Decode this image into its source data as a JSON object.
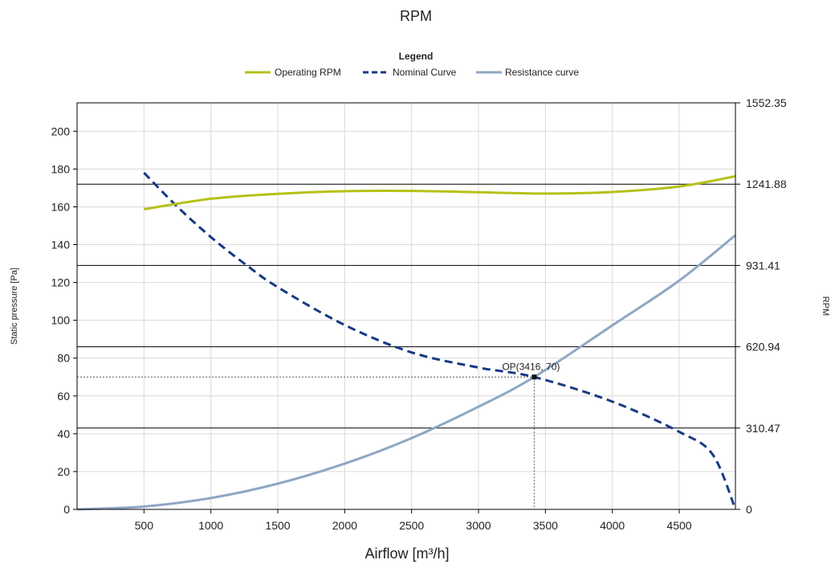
{
  "chart_data": {
    "type": "line",
    "title": "RPM",
    "legend": {
      "title": "Legend",
      "placement": "top-center"
    },
    "xlabel": "Airflow [m³/h]",
    "ylabel": "Static pressure [Pa]",
    "y2label": "RPM",
    "xlim": [
      0,
      4920
    ],
    "ylim": [
      0,
      215
    ],
    "y2lim": [
      0,
      1552.35
    ],
    "x_ticks": [
      500,
      1000,
      1500,
      2000,
      2500,
      3000,
      3500,
      4000,
      4500
    ],
    "y_ticks": [
      0,
      20,
      40,
      60,
      80,
      100,
      120,
      140,
      160,
      180,
      200
    ],
    "y2_ticks": [
      "0",
      "310.47",
      "620.94",
      "931.41",
      "1241.88",
      "1552.35"
    ],
    "grid": true,
    "series": [
      {
        "name": "Operating RPM",
        "color": "#b5c118",
        "axis": "y2",
        "style": "solid",
        "points": [
          [
            500,
            1146
          ],
          [
            1000,
            1186
          ],
          [
            1500,
            1205
          ],
          [
            2000,
            1215
          ],
          [
            2500,
            1216
          ],
          [
            3000,
            1211
          ],
          [
            3500,
            1206
          ],
          [
            4000,
            1212
          ],
          [
            4500,
            1233
          ],
          [
            4920,
            1272
          ]
        ]
      },
      {
        "name": "Nominal Curve",
        "color": "#173a84",
        "axis": "y",
        "style": "dashed",
        "points": [
          [
            500,
            178
          ],
          [
            750,
            160
          ],
          [
            1000,
            144
          ],
          [
            1250,
            130
          ],
          [
            1500,
            117.5
          ],
          [
            2000,
            97.5
          ],
          [
            2500,
            83
          ],
          [
            3000,
            75
          ],
          [
            3416,
            70
          ],
          [
            4000,
            57
          ],
          [
            4500,
            41
          ],
          [
            4750,
            29
          ],
          [
            4920,
            0
          ]
        ]
      },
      {
        "name": "Resistance curve",
        "color": "#8fa6c4",
        "axis": "y",
        "style": "solid",
        "points": [
          [
            0,
            0
          ],
          [
            500,
            1.5
          ],
          [
            1000,
            6
          ],
          [
            1500,
            13.6
          ],
          [
            2000,
            24.2
          ],
          [
            2500,
            37.7
          ],
          [
            3000,
            54.3
          ],
          [
            3416,
            70
          ],
          [
            4000,
            97.3
          ],
          [
            4500,
            121
          ],
          [
            4920,
            145
          ]
        ]
      }
    ],
    "operating_point": {
      "label": "OP(3416, 70)",
      "x": 3416,
      "y": 70
    }
  }
}
